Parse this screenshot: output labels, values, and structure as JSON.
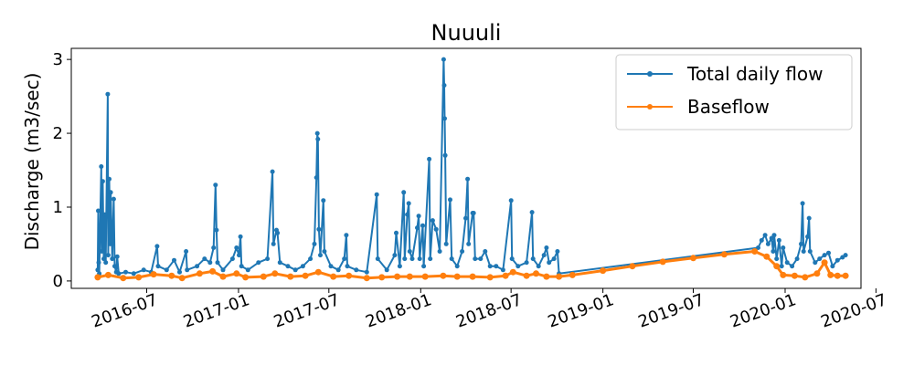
{
  "chart_data": {
    "type": "line",
    "title": "Nuuuli",
    "xlabel": "",
    "ylabel": "Discharge (m3/sec)",
    "x_range": [
      "2016-02-01",
      "2020-06-01"
    ],
    "ylim": [
      -0.1,
      3.15
    ],
    "x_ticks": [
      "2016-07",
      "2017-01",
      "2017-07",
      "2018-01",
      "2018-07",
      "2019-01",
      "2019-07",
      "2020-01",
      "2020-07"
    ],
    "y_ticks": [
      0,
      1,
      2,
      3
    ],
    "grid": false,
    "legend": {
      "placement": "top-right"
    },
    "series": [
      {
        "name": "Total daily flow",
        "color": "#1f77b4",
        "points": [
          [
            "2016-03-25",
            0.15
          ],
          [
            "2016-03-26",
            0.95
          ],
          [
            "2016-03-27",
            0.25
          ],
          [
            "2016-03-28",
            0.1
          ],
          [
            "2016-04-01",
            1.55
          ],
          [
            "2016-04-02",
            0.4
          ],
          [
            "2016-04-04",
            1.35
          ],
          [
            "2016-04-06",
            0.3
          ],
          [
            "2016-04-08",
            0.9
          ],
          [
            "2016-04-10",
            0.25
          ],
          [
            "2016-04-14",
            2.53
          ],
          [
            "2016-04-15",
            0.35
          ],
          [
            "2016-04-17",
            1.38
          ],
          [
            "2016-04-19",
            0.5
          ],
          [
            "2016-04-20",
            1.2
          ],
          [
            "2016-04-23",
            0.3
          ],
          [
            "2016-04-26",
            1.11
          ],
          [
            "2016-04-28",
            0.2
          ],
          [
            "2016-05-01",
            0.12
          ],
          [
            "2016-05-03",
            0.33
          ],
          [
            "2016-05-06",
            0.1
          ],
          [
            "2016-05-20",
            0.12
          ],
          [
            "2016-06-05",
            0.1
          ],
          [
            "2016-06-25",
            0.15
          ],
          [
            "2016-07-10",
            0.12
          ],
          [
            "2016-07-22",
            0.47
          ],
          [
            "2016-07-24",
            0.2
          ],
          [
            "2016-08-10",
            0.15
          ],
          [
            "2016-08-25",
            0.28
          ],
          [
            "2016-09-05",
            0.12
          ],
          [
            "2016-09-18",
            0.4
          ],
          [
            "2016-09-20",
            0.15
          ],
          [
            "2016-10-10",
            0.2
          ],
          [
            "2016-10-25",
            0.3
          ],
          [
            "2016-11-05",
            0.25
          ],
          [
            "2016-11-12",
            0.45
          ],
          [
            "2016-11-16",
            1.3
          ],
          [
            "2016-11-18",
            0.69
          ],
          [
            "2016-11-20",
            0.25
          ],
          [
            "2016-12-01",
            0.15
          ],
          [
            "2016-12-20",
            0.3
          ],
          [
            "2016-12-28",
            0.45
          ],
          [
            "2017-01-02",
            0.35
          ],
          [
            "2017-01-05",
            0.6
          ],
          [
            "2017-01-07",
            0.2
          ],
          [
            "2017-01-20",
            0.15
          ],
          [
            "2017-02-10",
            0.25
          ],
          [
            "2017-02-28",
            0.3
          ],
          [
            "2017-03-10",
            1.48
          ],
          [
            "2017-03-12",
            0.5
          ],
          [
            "2017-03-18",
            0.69
          ],
          [
            "2017-03-20",
            0.65
          ],
          [
            "2017-03-25",
            0.25
          ],
          [
            "2017-04-10",
            0.2
          ],
          [
            "2017-04-25",
            0.15
          ],
          [
            "2017-05-10",
            0.2
          ],
          [
            "2017-05-25",
            0.3
          ],
          [
            "2017-06-02",
            0.5
          ],
          [
            "2017-06-06",
            1.4
          ],
          [
            "2017-06-08",
            2.0
          ],
          [
            "2017-06-09",
            1.92
          ],
          [
            "2017-06-11",
            0.7
          ],
          [
            "2017-06-14",
            0.35
          ],
          [
            "2017-06-20",
            1.09
          ],
          [
            "2017-06-22",
            0.4
          ],
          [
            "2017-07-05",
            0.2
          ],
          [
            "2017-07-20",
            0.15
          ],
          [
            "2017-08-01",
            0.3
          ],
          [
            "2017-08-05",
            0.62
          ],
          [
            "2017-08-07",
            0.2
          ],
          [
            "2017-08-25",
            0.15
          ],
          [
            "2017-09-15",
            0.12
          ],
          [
            "2017-10-05",
            1.17
          ],
          [
            "2017-10-07",
            0.3
          ],
          [
            "2017-10-25",
            0.15
          ],
          [
            "2017-11-10",
            0.35
          ],
          [
            "2017-11-13",
            0.65
          ],
          [
            "2017-11-20",
            0.2
          ],
          [
            "2017-11-28",
            1.2
          ],
          [
            "2017-11-30",
            0.3
          ],
          [
            "2017-12-05",
            0.9
          ],
          [
            "2017-12-08",
            1.05
          ],
          [
            "2017-12-10",
            0.4
          ],
          [
            "2017-12-15",
            0.3
          ],
          [
            "2017-12-25",
            0.72
          ],
          [
            "2017-12-28",
            0.88
          ],
          [
            "2017-12-30",
            0.3
          ],
          [
            "2018-01-05",
            0.75
          ],
          [
            "2018-01-07",
            0.2
          ],
          [
            "2018-01-18",
            1.65
          ],
          [
            "2018-01-20",
            0.3
          ],
          [
            "2018-01-25",
            0.82
          ],
          [
            "2018-02-01",
            0.7
          ],
          [
            "2018-02-08",
            0.4
          ],
          [
            "2018-02-16",
            3.0
          ],
          [
            "2018-02-17",
            2.65
          ],
          [
            "2018-02-18",
            2.2
          ],
          [
            "2018-02-19",
            1.7
          ],
          [
            "2018-02-21",
            0.5
          ],
          [
            "2018-03-01",
            1.1
          ],
          [
            "2018-03-04",
            0.3
          ],
          [
            "2018-03-15",
            0.2
          ],
          [
            "2018-03-25",
            0.4
          ],
          [
            "2018-04-01",
            0.85
          ],
          [
            "2018-04-05",
            1.38
          ],
          [
            "2018-04-07",
            0.5
          ],
          [
            "2018-04-15",
            0.92
          ],
          [
            "2018-04-17",
            0.92
          ],
          [
            "2018-04-20",
            0.3
          ],
          [
            "2018-05-01",
            0.3
          ],
          [
            "2018-05-10",
            0.4
          ],
          [
            "2018-05-20",
            0.2
          ],
          [
            "2018-06-01",
            0.2
          ],
          [
            "2018-06-15",
            0.15
          ],
          [
            "2018-07-01",
            1.09
          ],
          [
            "2018-07-03",
            0.3
          ],
          [
            "2018-07-15",
            0.2
          ],
          [
            "2018-08-01",
            0.25
          ],
          [
            "2018-08-12",
            0.93
          ],
          [
            "2018-08-14",
            0.3
          ],
          [
            "2018-08-25",
            0.2
          ],
          [
            "2018-09-05",
            0.35
          ],
          [
            "2018-09-10",
            0.45
          ],
          [
            "2018-09-15",
            0.25
          ],
          [
            "2018-09-25",
            0.3
          ],
          [
            "2018-10-02",
            0.4
          ],
          [
            "2018-10-05",
            0.1
          ],
          [
            "2019-11-08",
            0.45
          ],
          [
            "2019-11-15",
            0.55
          ],
          [
            "2019-11-22",
            0.62
          ],
          [
            "2019-11-28",
            0.5
          ],
          [
            "2019-12-05",
            0.58
          ],
          [
            "2019-12-08",
            0.4
          ],
          [
            "2019-12-10",
            0.62
          ],
          [
            "2019-12-15",
            0.3
          ],
          [
            "2019-12-20",
            0.55
          ],
          [
            "2019-12-25",
            0.2
          ],
          [
            "2019-12-28",
            0.45
          ],
          [
            "2020-01-05",
            0.25
          ],
          [
            "2020-01-15",
            0.2
          ],
          [
            "2020-01-25",
            0.3
          ],
          [
            "2020-02-02",
            0.5
          ],
          [
            "2020-02-05",
            1.05
          ],
          [
            "2020-02-07",
            0.4
          ],
          [
            "2020-02-15",
            0.6
          ],
          [
            "2020-02-18",
            0.85
          ],
          [
            "2020-02-20",
            0.4
          ],
          [
            "2020-03-01",
            0.25
          ],
          [
            "2020-03-10",
            0.3
          ],
          [
            "2020-03-20",
            0.35
          ],
          [
            "2020-03-28",
            0.38
          ],
          [
            "2020-04-05",
            0.2
          ],
          [
            "2020-04-15",
            0.28
          ],
          [
            "2020-04-25",
            0.32
          ],
          [
            "2020-05-01",
            0.35
          ]
        ]
      },
      {
        "name": "Baseflow",
        "color": "#ff7f0e",
        "points": [
          [
            "2016-03-25",
            0.05
          ],
          [
            "2016-04-15",
            0.08
          ],
          [
            "2016-05-15",
            0.04
          ],
          [
            "2016-06-15",
            0.05
          ],
          [
            "2016-07-15",
            0.09
          ],
          [
            "2016-08-20",
            0.07
          ],
          [
            "2016-09-10",
            0.04
          ],
          [
            "2016-10-15",
            0.1
          ],
          [
            "2016-11-10",
            0.13
          ],
          [
            "2016-12-01",
            0.06
          ],
          [
            "2016-12-28",
            0.1
          ],
          [
            "2017-01-15",
            0.05
          ],
          [
            "2017-02-20",
            0.06
          ],
          [
            "2017-03-15",
            0.1
          ],
          [
            "2017-04-15",
            0.06
          ],
          [
            "2017-05-15",
            0.07
          ],
          [
            "2017-06-10",
            0.12
          ],
          [
            "2017-07-10",
            0.06
          ],
          [
            "2017-08-10",
            0.07
          ],
          [
            "2017-09-15",
            0.04
          ],
          [
            "2017-10-15",
            0.05
          ],
          [
            "2017-11-15",
            0.06
          ],
          [
            "2017-12-10",
            0.06
          ],
          [
            "2018-01-10",
            0.06
          ],
          [
            "2018-02-15",
            0.07
          ],
          [
            "2018-03-15",
            0.06
          ],
          [
            "2018-04-15",
            0.06
          ],
          [
            "2018-05-20",
            0.05
          ],
          [
            "2018-06-20",
            0.07
          ],
          [
            "2018-07-05",
            0.12
          ],
          [
            "2018-08-01",
            0.07
          ],
          [
            "2018-08-20",
            0.1
          ],
          [
            "2018-09-10",
            0.06
          ],
          [
            "2018-10-05",
            0.06
          ],
          [
            "2018-11-01",
            0.08
          ],
          [
            "2019-01-01",
            0.14
          ],
          [
            "2019-03-01",
            0.2
          ],
          [
            "2019-05-01",
            0.26
          ],
          [
            "2019-07-01",
            0.31
          ],
          [
            "2019-09-01",
            0.36
          ],
          [
            "2019-11-01",
            0.4
          ],
          [
            "2019-11-25",
            0.33
          ],
          [
            "2019-12-15",
            0.2
          ],
          [
            "2019-12-28",
            0.08
          ],
          [
            "2020-01-20",
            0.07
          ],
          [
            "2020-02-10",
            0.05
          ],
          [
            "2020-03-05",
            0.1
          ],
          [
            "2020-03-20",
            0.25
          ],
          [
            "2020-04-01",
            0.08
          ],
          [
            "2020-04-15",
            0.07
          ],
          [
            "2020-05-01",
            0.07
          ]
        ]
      }
    ]
  }
}
